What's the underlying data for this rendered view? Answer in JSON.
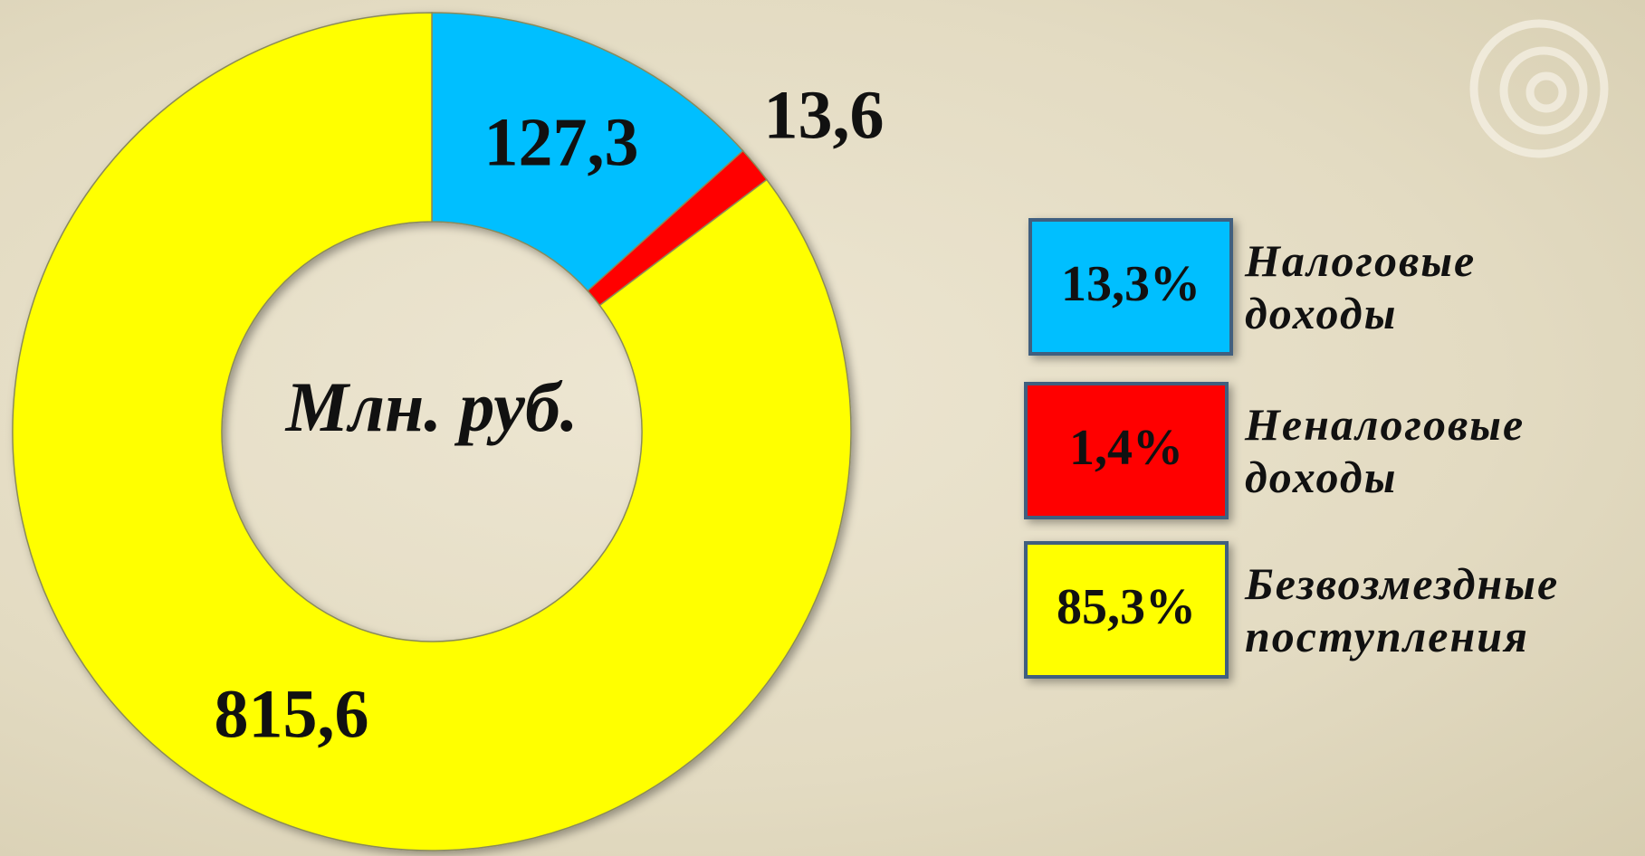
{
  "chart_data": {
    "type": "donut",
    "center_label": "Млн. руб.",
    "categories": [
      "Налоговые доходы",
      "Неналоговые доходы",
      "Безвозмездные поступления"
    ],
    "values": [
      127.3,
      13.6,
      815.6
    ],
    "value_labels": [
      "127,3",
      "13,6",
      "815,6"
    ],
    "percentages": [
      13.3,
      1.4,
      85.3
    ],
    "percentage_labels": [
      "13,3%",
      "1,4%",
      "85,3%"
    ],
    "colors": [
      "#00bfff",
      "#ff0000",
      "#ffff00"
    ]
  }
}
